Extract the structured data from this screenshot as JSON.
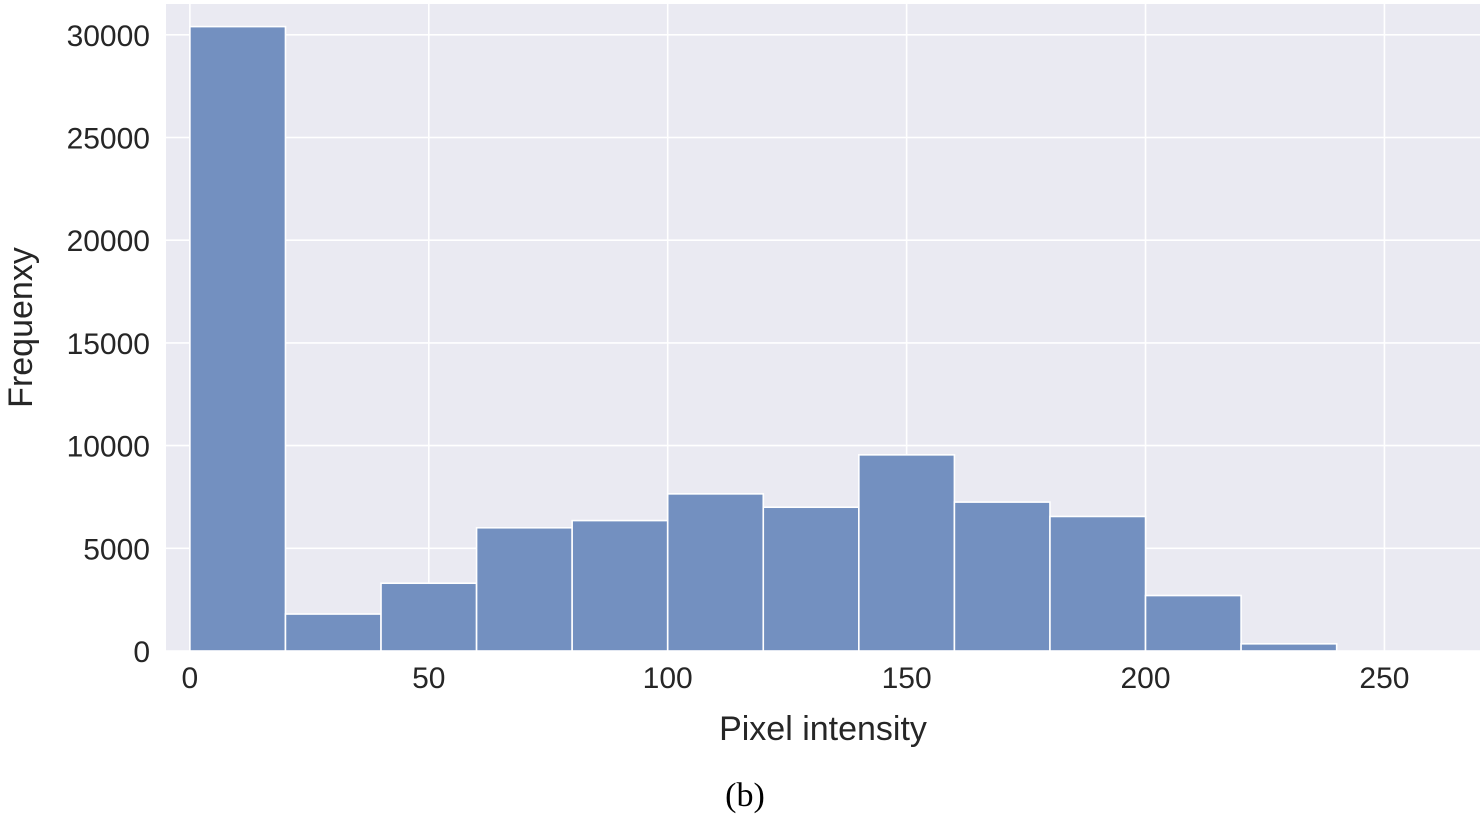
{
  "chart_data": {
    "type": "bar",
    "histogram": true,
    "bins": [
      {
        "x0": 0,
        "x1": 20,
        "count": 30400
      },
      {
        "x0": 20,
        "x1": 40,
        "count": 1800
      },
      {
        "x0": 40,
        "x1": 60,
        "count": 3300
      },
      {
        "x0": 60,
        "x1": 80,
        "count": 6000
      },
      {
        "x0": 80,
        "x1": 100,
        "count": 6350
      },
      {
        "x0": 100,
        "x1": 120,
        "count": 7650
      },
      {
        "x0": 120,
        "x1": 140,
        "count": 7000
      },
      {
        "x0": 140,
        "x1": 160,
        "count": 9550
      },
      {
        "x0": 160,
        "x1": 180,
        "count": 7250
      },
      {
        "x0": 180,
        "x1": 200,
        "count": 6550
      },
      {
        "x0": 200,
        "x1": 220,
        "count": 2700
      },
      {
        "x0": 220,
        "x1": 240,
        "count": 350
      }
    ],
    "xlabel": "Pixel intensity",
    "ylabel": "Frequenxy",
    "xlim": [
      -5,
      270
    ],
    "ylim": [
      0,
      31500
    ],
    "xticks": [
      "0",
      "50",
      "100",
      "150",
      "200",
      "250"
    ],
    "yticks": [
      "0",
      "5000",
      "10000",
      "15000",
      "20000",
      "25000",
      "30000"
    ],
    "grid": true,
    "caption": "(b)",
    "colors": {
      "bar": "#7390c0",
      "background": "#eaeaf2",
      "grid": "#ffffff"
    }
  }
}
